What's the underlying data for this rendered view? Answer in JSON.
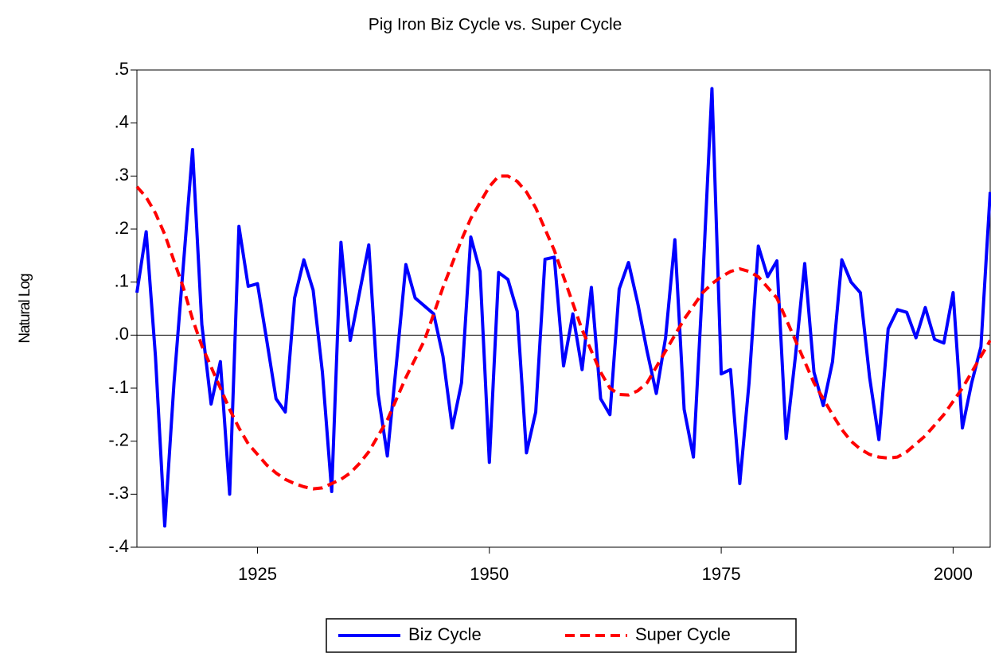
{
  "chart_data": {
    "type": "line",
    "title": "Pig Iron Biz Cycle vs. Super Cycle",
    "y_label": "Natural Log",
    "x": [
      1912,
      1913,
      1914,
      1915,
      1916,
      1917,
      1918,
      1919,
      1920,
      1921,
      1922,
      1923,
      1924,
      1925,
      1926,
      1927,
      1928,
      1929,
      1930,
      1931,
      1932,
      1933,
      1934,
      1935,
      1936,
      1937,
      1938,
      1939,
      1940,
      1941,
      1942,
      1943,
      1944,
      1945,
      1946,
      1947,
      1948,
      1949,
      1950,
      1951,
      1952,
      1953,
      1954,
      1955,
      1956,
      1957,
      1958,
      1959,
      1960,
      1961,
      1962,
      1963,
      1964,
      1965,
      1966,
      1967,
      1968,
      1969,
      1970,
      1971,
      1972,
      1973,
      1974,
      1975,
      1976,
      1977,
      1978,
      1979,
      1980,
      1981,
      1982,
      1983,
      1984,
      1985,
      1986,
      1987,
      1988,
      1989,
      1990,
      1991,
      1992,
      1993,
      1994,
      1995,
      1996,
      1997,
      1998,
      1999,
      2000,
      2001,
      2002,
      2003,
      2004
    ],
    "series": [
      {
        "name": "Biz Cycle",
        "color": "#0000ff",
        "dash": false,
        "values": [
          0.08,
          0.195,
          -0.04,
          -0.36,
          -0.09,
          0.13,
          0.35,
          0.02,
          -0.13,
          -0.05,
          -0.3,
          0.205,
          0.092,
          0.097,
          -0.01,
          -0.12,
          -0.145,
          0.07,
          0.142,
          0.085,
          -0.07,
          -0.295,
          0.175,
          -0.01,
          0.08,
          0.17,
          -0.11,
          -0.228,
          -0.05,
          0.133,
          0.07,
          0.055,
          0.04,
          -0.04,
          -0.175,
          -0.09,
          0.185,
          0.12,
          -0.24,
          0.118,
          0.105,
          0.045,
          -0.222,
          -0.145,
          0.143,
          0.147,
          -0.058,
          0.04,
          -0.065,
          0.09,
          -0.12,
          -0.15,
          0.087,
          0.137,
          0.06,
          -0.03,
          -0.11,
          -0.005,
          0.18,
          -0.14,
          -0.23,
          0.1,
          0.465,
          -0.073,
          -0.065,
          -0.28,
          -0.09,
          0.168,
          0.11,
          0.14,
          -0.195,
          -0.04,
          0.135,
          -0.07,
          -0.133,
          -0.05,
          0.142,
          0.1,
          0.08,
          -0.08,
          -0.197,
          0.012,
          0.048,
          0.043,
          -0.005,
          0.052,
          -0.008,
          -0.015,
          0.08,
          -0.175,
          -0.09,
          -0.022,
          0.27
        ]
      },
      {
        "name": "Super Cycle",
        "color": "#ff0000",
        "dash": true,
        "values": [
          0.28,
          0.26,
          0.23,
          0.19,
          0.14,
          0.09,
          0.03,
          -0.02,
          -0.06,
          -0.1,
          -0.14,
          -0.175,
          -0.205,
          -0.225,
          -0.245,
          -0.26,
          -0.272,
          -0.28,
          -0.286,
          -0.29,
          -0.288,
          -0.28,
          -0.272,
          -0.26,
          -0.242,
          -0.22,
          -0.19,
          -0.16,
          -0.12,
          -0.08,
          -0.045,
          -0.01,
          0.04,
          0.09,
          0.135,
          0.18,
          0.22,
          0.25,
          0.28,
          0.3,
          0.3,
          0.29,
          0.27,
          0.24,
          0.2,
          0.16,
          0.11,
          0.06,
          0.01,
          -0.03,
          -0.07,
          -0.1,
          -0.112,
          -0.113,
          -0.105,
          -0.09,
          -0.06,
          -0.03,
          0,
          0.03,
          0.055,
          0.08,
          0.097,
          0.11,
          0.12,
          0.125,
          0.12,
          0.11,
          0.09,
          0.07,
          0.03,
          -0.01,
          -0.05,
          -0.09,
          -0.12,
          -0.15,
          -0.178,
          -0.2,
          -0.215,
          -0.225,
          -0.23,
          -0.232,
          -0.23,
          -0.22,
          -0.205,
          -0.19,
          -0.17,
          -0.15,
          -0.125,
          -0.1,
          -0.07,
          -0.04,
          -0.01
        ]
      }
    ],
    "xlim": [
      1912,
      2004
    ],
    "xticks": [
      1925,
      1950,
      1975,
      2000
    ],
    "ylim": [
      -0.4,
      0.5
    ],
    "yticks": [
      {
        "value": 0.5,
        "label": ".5"
      },
      {
        "value": 0.4,
        "label": ".4"
      },
      {
        "value": 0.3,
        "label": ".3"
      },
      {
        "value": 0.2,
        "label": ".2"
      },
      {
        "value": 0.1,
        "label": ".1"
      },
      {
        "value": 0,
        "label": ".0"
      },
      {
        "value": -0.1,
        "label": "-.1"
      },
      {
        "value": -0.2,
        "label": "-.2"
      },
      {
        "value": -0.3,
        "label": "-.3"
      },
      {
        "value": -0.4,
        "label": "-.4"
      }
    ],
    "zero_line": true,
    "legend": "bottom"
  }
}
